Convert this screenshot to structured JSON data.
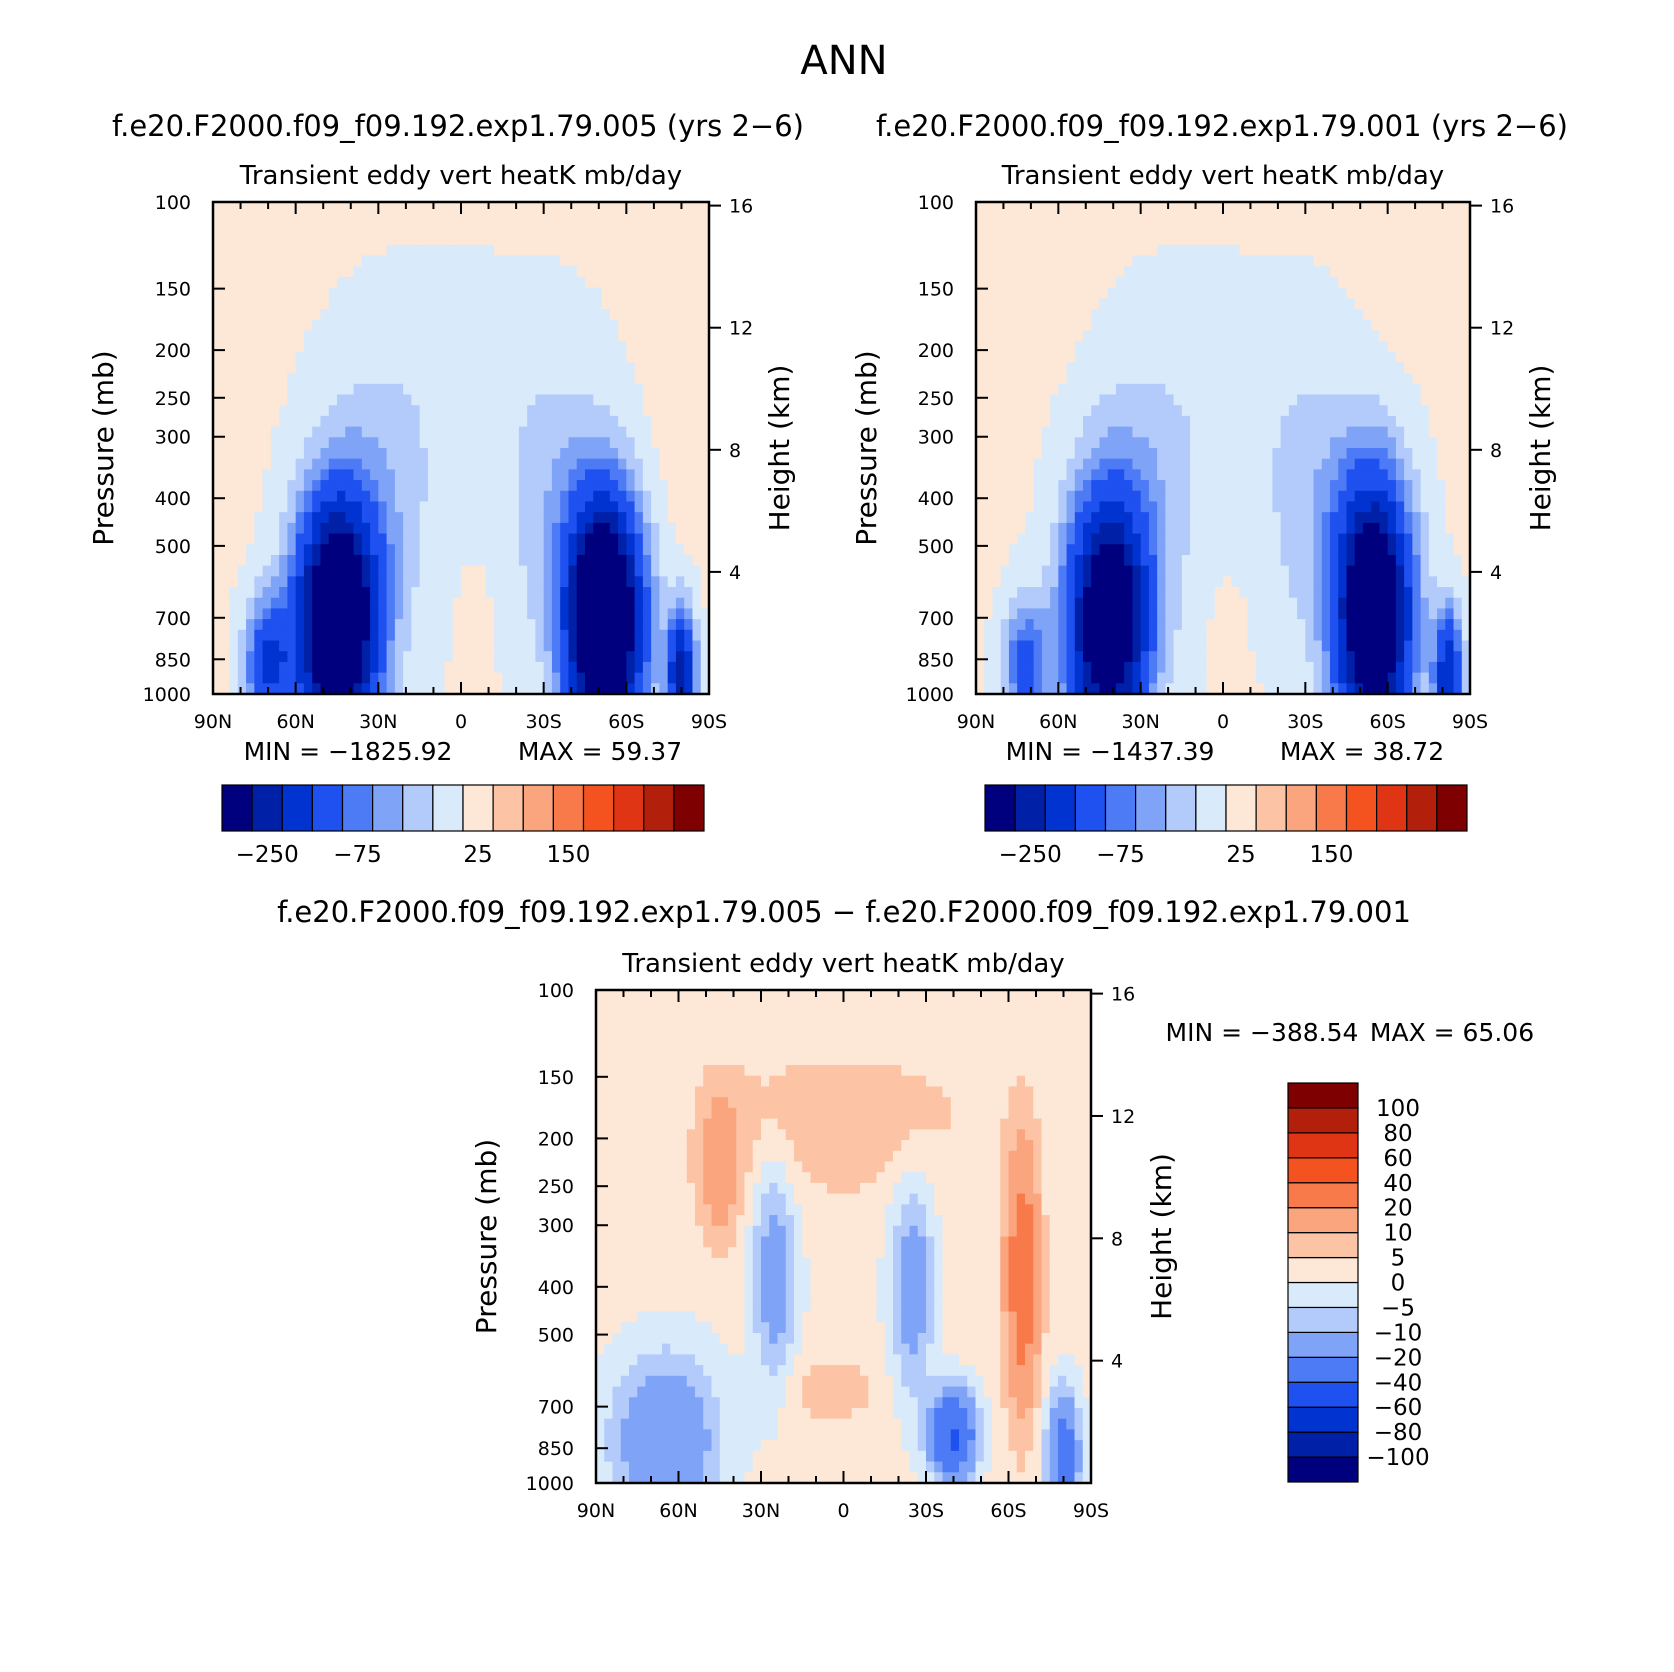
{
  "figure": {
    "title": "ANN",
    "bottom_title": "f.e20.F2000.f09_f09.192.exp1.79.005 − f.e20.F2000.f09_f09.192.exp1.79.001"
  },
  "chart_data": [
    {
      "type": "heatmap",
      "id": "panel-a",
      "case": "f.e20.F2000.f09_f09.192.exp1.79.005 (yrs 2−6)",
      "title": "Transient eddy vert heatK mb/day",
      "xlabel": "",
      "ylabel": "Pressure (mb)",
      "y2label": "Height (km)",
      "x_ticklabels": [
        "90N",
        "60N",
        "30N",
        "0",
        "30S",
        "60S",
        "90S"
      ],
      "x_range": [
        90,
        -90
      ],
      "y_ticklabels": [
        "100",
        "150",
        "200",
        "250",
        "300",
        "400",
        "500",
        "700",
        "850",
        "1000"
      ],
      "y_range_mb": [
        1000,
        100
      ],
      "y_scale": "log",
      "y2_ticklabels": [
        "4",
        "8",
        "12",
        "16"
      ],
      "min_label": "MIN = −1825.92",
      "max_label": "MAX = 59.37",
      "colorbar": {
        "orientation": "horizontal",
        "colors": [
          "#00007f",
          "#0020a8",
          "#0033d0",
          "#1f50f0",
          "#4d7af5",
          "#7fa3f7",
          "#b3cbfa",
          "#d9eafb",
          "#fde7d6",
          "#fcc4a5",
          "#fba57e",
          "#f87a4a",
          "#f4521f",
          "#e03514",
          "#b2200b",
          "#7f0000"
        ],
        "labels": [
          "−250",
          "−75",
          "25",
          "150"
        ]
      },
      "extremes": {
        "min": -1825.92,
        "max": 59.37
      }
    },
    {
      "type": "heatmap",
      "id": "panel-b",
      "case": "f.e20.F2000.f09_f09.192.exp1.79.001 (yrs 2−6)",
      "title": "Transient eddy vert heatK mb/day",
      "xlabel": "",
      "ylabel": "Pressure (mb)",
      "y2label": "Height (km)",
      "x_ticklabels": [
        "90N",
        "60N",
        "30N",
        "0",
        "30S",
        "60S",
        "90S"
      ],
      "x_range": [
        90,
        -90
      ],
      "y_ticklabels": [
        "100",
        "150",
        "200",
        "250",
        "300",
        "400",
        "500",
        "700",
        "850",
        "1000"
      ],
      "y_range_mb": [
        1000,
        100
      ],
      "y_scale": "log",
      "y2_ticklabels": [
        "4",
        "8",
        "12",
        "16"
      ],
      "min_label": "MIN = −1437.39",
      "max_label": "MAX = 38.72",
      "colorbar": {
        "orientation": "horizontal",
        "colors": [
          "#00007f",
          "#0020a8",
          "#0033d0",
          "#1f50f0",
          "#4d7af5",
          "#7fa3f7",
          "#b3cbfa",
          "#d9eafb",
          "#fde7d6",
          "#fcc4a5",
          "#fba57e",
          "#f87a4a",
          "#f4521f",
          "#e03514",
          "#b2200b",
          "#7f0000"
        ],
        "labels": [
          "−250",
          "−75",
          "25",
          "150"
        ]
      },
      "extremes": {
        "min": -1437.39,
        "max": 38.72
      }
    },
    {
      "type": "heatmap",
      "id": "panel-diff",
      "title": "Transient eddy vert heatK mb/day",
      "xlabel": "",
      "ylabel": "Pressure (mb)",
      "y2label": "Height (km)",
      "x_ticklabels": [
        "90N",
        "60N",
        "30N",
        "0",
        "30S",
        "60S",
        "90S"
      ],
      "x_range": [
        90,
        -90
      ],
      "y_ticklabels": [
        "100",
        "150",
        "200",
        "250",
        "300",
        "400",
        "500",
        "700",
        "850",
        "1000"
      ],
      "y_range_mb": [
        1000,
        100
      ],
      "y_scale": "log",
      "y2_ticklabels": [
        "4",
        "8",
        "12",
        "16"
      ],
      "min_label": "MIN = −388.54",
      "max_label": "MAX = 65.06",
      "colorbar": {
        "orientation": "vertical",
        "colors": [
          "#00007f",
          "#0020a8",
          "#0033d0",
          "#1f50f0",
          "#4d7af5",
          "#7fa3f7",
          "#b3cbfa",
          "#d9eafb",
          "#fde7d6",
          "#fcc4a5",
          "#fba57e",
          "#f87a4a",
          "#f4521f",
          "#e03514",
          "#b2200b",
          "#7f0000"
        ],
        "labels": [
          "−100",
          "−80",
          "−60",
          "−40",
          "−20",
          "−10",
          "−5",
          "0",
          "5",
          "10",
          "20",
          "40",
          "60",
          "80",
          "100"
        ]
      },
      "extremes": {
        "min": -388.54,
        "max": 65.06
      }
    }
  ]
}
